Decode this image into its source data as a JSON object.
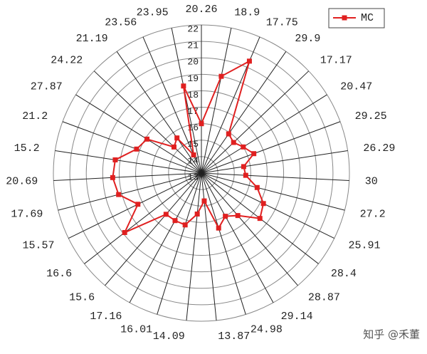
{
  "chart_data": {
    "type": "radar",
    "categories": [
      "20.26",
      "18.9",
      "17.75",
      "29.9",
      "17.17",
      "20.47",
      "29.25",
      "26.29",
      "30",
      "27.2",
      "25.91",
      "28.4",
      "28.87",
      "29.14",
      "24.98",
      "13.87",
      "14.09",
      "16.01",
      "17.16",
      "15.6",
      "16.6",
      "15.57",
      "17.69",
      "20.69",
      "15.2",
      "21.2",
      "27.87",
      "24.22",
      "21.19",
      "23.56",
      "23.95"
    ],
    "series": [
      {
        "name": "MC",
        "color": "#e02020",
        "values": [
          16.0,
          19.0,
          20.4,
          15.9,
          15.7,
          16.0,
          16.4,
          15.6,
          15.7,
          16.5,
          17.2,
          17.5,
          16.4,
          16.0,
          16.5,
          14.7,
          15.5,
          16.3,
          16.3,
          16.3,
          18.9,
          17.3,
          18.2,
          18.4,
          18.3,
          17.2,
          16.9,
          15.3,
          15.6,
          14.2,
          18.4
        ]
      }
    ],
    "ylim": [
      13,
      22
    ],
    "yticks": [
      13,
      14,
      15,
      16,
      17,
      18,
      19,
      20,
      21,
      22
    ],
    "grid": true,
    "legend": "top-right",
    "watermark": "知乎 @禾董"
  }
}
